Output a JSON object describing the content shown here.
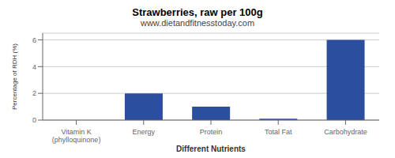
{
  "chart_data": {
    "type": "bar",
    "title": "Strawberries, raw per 100g",
    "subtitle": "www.dietandfitnesstoday.com",
    "xlabel": "Different Nutrients",
    "ylabel": "Percentage of RDH (%)",
    "categories": [
      "Vitamin K (phylloquinone)",
      "Energy",
      "Protein",
      "Total Fat",
      "Carbohydrate"
    ],
    "values": [
      0.0,
      2.0,
      1.0,
      0.1,
      6.0
    ],
    "color": "#2b4f9e",
    "ylim": [
      0,
      6.5
    ],
    "yticks": [
      0,
      2,
      4,
      6
    ],
    "grid": true
  }
}
